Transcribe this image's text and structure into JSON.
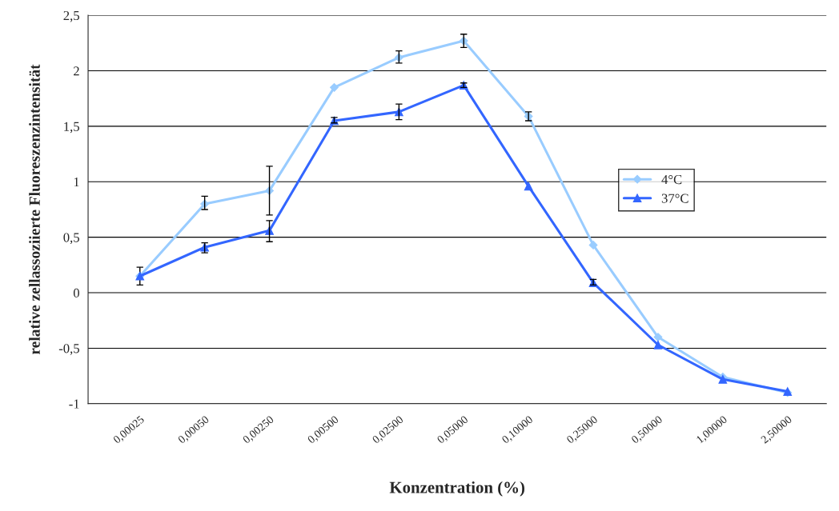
{
  "chart_data": {
    "type": "line",
    "xlabel": "Konzentration (%)",
    "ylabel": "relative zellassoziierte Fluoreszenzintensität",
    "categories": [
      "0,00025",
      "0,00050",
      "0,00250",
      "0,00500",
      "0,02500",
      "0,05000",
      "0,10000",
      "0,25000",
      "0,50000",
      "1,00000",
      "2,50000"
    ],
    "series": [
      {
        "name": "4°C",
        "color": "#99ccff",
        "marker": "diamond",
        "values": [
          0.15,
          0.8,
          0.92,
          1.85,
          2.12,
          2.27,
          1.59,
          0.43,
          -0.4,
          -0.76,
          -0.9
        ],
        "errors": [
          [
            0.07,
            0.23
          ],
          [
            0.75,
            0.87
          ],
          [
            0.7,
            1.14
          ],
          null,
          [
            2.07,
            2.18
          ],
          [
            2.21,
            2.33
          ],
          [
            1.55,
            1.63
          ],
          null,
          null,
          null,
          null
        ]
      },
      {
        "name": "37°C",
        "color": "#3366ff",
        "marker": "triangle",
        "values": [
          0.15,
          0.41,
          0.56,
          1.55,
          1.63,
          1.87,
          0.96,
          0.09,
          -0.47,
          -0.78,
          -0.89
        ],
        "errors": [
          null,
          [
            0.36,
            0.45
          ],
          [
            0.46,
            0.65
          ],
          [
            1.53,
            1.58
          ],
          [
            1.56,
            1.7
          ],
          [
            1.85,
            1.89
          ],
          null,
          [
            0.07,
            0.12
          ],
          null,
          null,
          null
        ]
      }
    ],
    "ylim": [
      -1,
      2.5
    ],
    "yticks": [
      {
        "value": -1,
        "label": "-1"
      },
      {
        "value": -0.5,
        "label": "-0,5"
      },
      {
        "value": 0,
        "label": "0"
      },
      {
        "value": 0.5,
        "label": "0,5"
      },
      {
        "value": 1,
        "label": "1"
      },
      {
        "value": 1.5,
        "label": "1,5"
      },
      {
        "value": 2,
        "label": "2"
      },
      {
        "value": 2.5,
        "label": "2,5"
      }
    ],
    "grid": "y",
    "legend": "center right"
  }
}
